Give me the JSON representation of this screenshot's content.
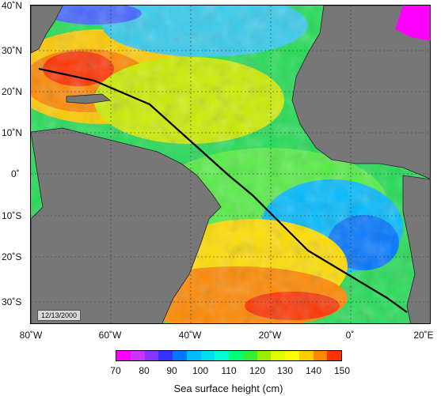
{
  "map": {
    "lat_labels": [
      "40˚N",
      "30˚N",
      "20˚N",
      "10˚N",
      "0˚",
      "10˚S",
      "20˚S",
      "30˚S"
    ],
    "lon_labels": [
      "80˚W",
      "60˚W",
      "40˚W",
      "20˚W",
      "0˚",
      "20˚E"
    ],
    "date_stamp": "12/13/2000",
    "land_color": "#777777",
    "track_color": "#000000"
  },
  "colorbar": {
    "ticks": [
      "70",
      "80",
      "90",
      "100",
      "110",
      "120",
      "130",
      "140",
      "150"
    ],
    "title": "Sea surface height (cm)",
    "colors": [
      "#ff00ff",
      "#cc33ff",
      "#8833ff",
      "#3333ff",
      "#0077ff",
      "#00bbff",
      "#00ddee",
      "#00ffcc",
      "#00ff77",
      "#33ee33",
      "#99ee00",
      "#ddff00",
      "#ffff00",
      "#ffcc00",
      "#ff8800",
      "#ff3300"
    ]
  }
}
